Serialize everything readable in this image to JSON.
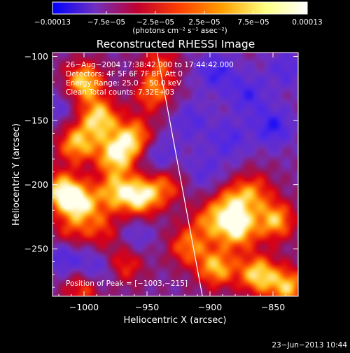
{
  "chart_data": {
    "type": "heatmap",
    "title": "Reconstructed RHESSI Image",
    "xlabel": "Heliocentric X (arcsec)",
    "ylabel": "Heliocentric Y (arcsec)",
    "xlim": [
      -1025,
      -830
    ],
    "ylim": [
      -287,
      -97
    ],
    "x_ticks": [
      {
        "value": -1000,
        "label": "−1000"
      },
      {
        "value": -950,
        "label": "−950"
      },
      {
        "value": -900,
        "label": "−900"
      },
      {
        "value": -850,
        "label": "−850"
      }
    ],
    "y_ticks": [
      {
        "value": -100,
        "label": "−100"
      },
      {
        "value": -150,
        "label": "−150"
      },
      {
        "value": -200,
        "label": "−200"
      },
      {
        "value": -250,
        "label": "−250"
      }
    ],
    "colorbar": {
      "min": -0.00013,
      "max": 0.00013,
      "tick_labels": [
        "−0.00013",
        "−7.5e−05",
        "−2.5e−05",
        "2.5e−05",
        "7.5e−05",
        "0.00013"
      ],
      "tick_values": [
        -0.00013,
        -7.5e-05,
        -2.5e-05,
        2.5e-05,
        7.5e-05,
        0.00013
      ],
      "units": "(photons cm⁻² s⁻¹ asec⁻²)",
      "colors": [
        "#0000ff",
        "#7030c0",
        "#c00030",
        "#ff4000",
        "#ffa000",
        "#ffff80",
        "#ffffff"
      ]
    },
    "info_lines": [
      "26−Aug−2004 17:38:42.000 to 17:44:42.000",
      "Detectors: 4F 5F 6F 7F 8F, Att 0",
      "Energy Range: 25.0 − 50.0 keV",
      "Clean    Total counts: 7.32E+03"
    ],
    "peak_text": "Position of Peak = [−1003,−215]",
    "limb_line": [
      [
        -942,
        -97
      ],
      [
        -906,
        -287
      ]
    ],
    "blobs": [
      {
        "x": -1000,
        "y": -120,
        "v": 1.0
      },
      {
        "x": -988,
        "y": -148,
        "v": 1.0
      },
      {
        "x": -1006,
        "y": -168,
        "v": 0.9
      },
      {
        "x": -975,
        "y": -177,
        "v": 1.0
      },
      {
        "x": -960,
        "y": -163,
        "v": 0.85
      },
      {
        "x": -955,
        "y": -210,
        "v": 1.0
      },
      {
        "x": -975,
        "y": -205,
        "v": 0.8
      },
      {
        "x": -1018,
        "y": -205,
        "v": 1.0
      },
      {
        "x": -1003,
        "y": -215,
        "v": 0.95
      },
      {
        "x": -945,
        "y": -128,
        "v": 0.7
      },
      {
        "x": -935,
        "y": -200,
        "v": 0.6
      },
      {
        "x": -1012,
        "y": -240,
        "v": 0.55
      },
      {
        "x": -968,
        "y": -262,
        "v": 0.6
      },
      {
        "x": -985,
        "y": -235,
        "v": 0.5
      },
      {
        "x": -918,
        "y": -248,
        "v": 0.7
      },
      {
        "x": -895,
        "y": -265,
        "v": 0.9
      },
      {
        "x": -878,
        "y": -235,
        "v": 1.0
      },
      {
        "x": -862,
        "y": -270,
        "v": 1.0
      },
      {
        "x": -848,
        "y": -228,
        "v": 0.9
      },
      {
        "x": -838,
        "y": -280,
        "v": 0.9
      },
      {
        "x": -882,
        "y": -215,
        "v": 0.75
      },
      {
        "x": -865,
        "y": -205,
        "v": 0.6
      },
      {
        "x": -900,
        "y": -228,
        "v": 0.65
      },
      {
        "x": -1000,
        "y": -280,
        "v": 0.7
      },
      {
        "x": -940,
        "y": -105,
        "v": 0.5
      },
      {
        "x": -895,
        "y": -112,
        "v": -0.55
      },
      {
        "x": -870,
        "y": -130,
        "v": -0.5
      },
      {
        "x": -850,
        "y": -155,
        "v": -0.6
      },
      {
        "x": -885,
        "y": -165,
        "v": -0.45
      },
      {
        "x": -915,
        "y": -150,
        "v": -0.4
      },
      {
        "x": -940,
        "y": -178,
        "v": -0.45
      },
      {
        "x": -1015,
        "y": -255,
        "v": -0.6
      },
      {
        "x": -990,
        "y": -268,
        "v": -0.55
      },
      {
        "x": -1020,
        "y": -140,
        "v": -0.3
      },
      {
        "x": -840,
        "y": -110,
        "v": -0.4
      },
      {
        "x": -960,
        "y": -240,
        "v": -0.35
      },
      {
        "x": -905,
        "y": -190,
        "v": -0.35
      }
    ]
  },
  "footer": {
    "timestamp": "23−Jun−2013 10:44"
  }
}
